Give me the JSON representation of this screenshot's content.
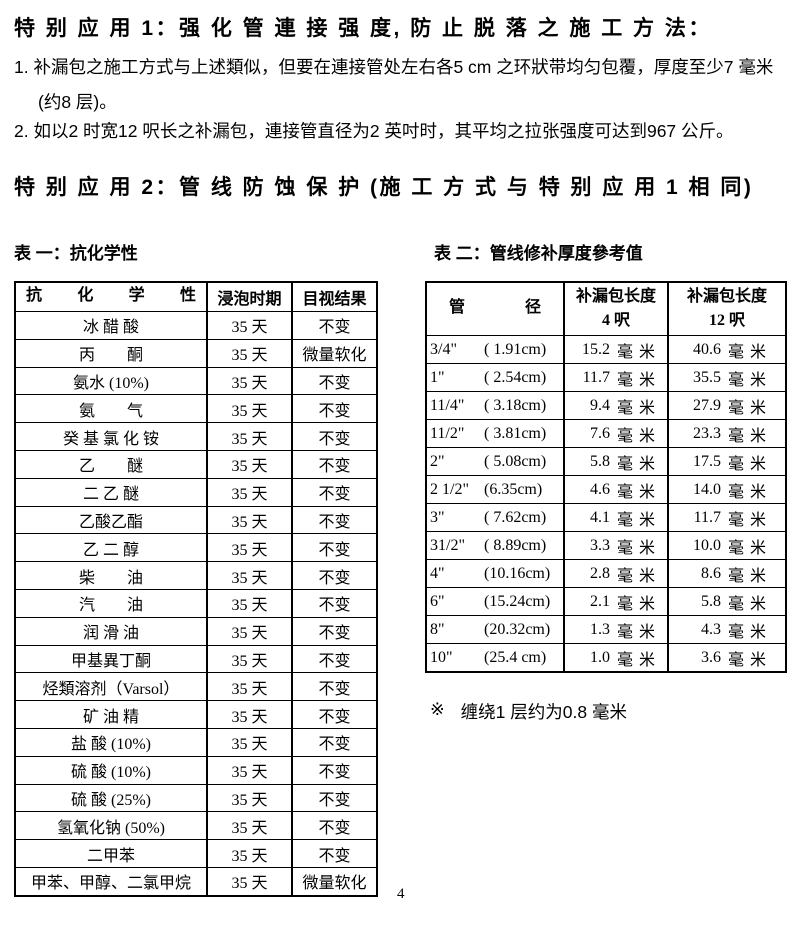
{
  "page_number": "4",
  "sections": {
    "special1": {
      "title": "特 别 应 用 1：强 化 管 連 接 强 度, 防 止 脱 落 之 施 工 方 法：",
      "items": [
        "1. 补漏包之施工方式与上述類似，但要在連接管处左右各5 cm 之环狀带均匀包覆，厚度至少7 毫米 (约8 层)。",
        "2. 如以2 时宽12 呎长之补漏包，連接管直径为2 英吋时，其平均之拉张强度可达到967 公斤。"
      ]
    },
    "special2": {
      "title": "特 别 应 用 2：管 线 防 蚀 保 护 (施 工 方 式 与 特 别 应 用 1 相 同)"
    }
  },
  "table1": {
    "caption": "表 一：抗化学性",
    "headers": [
      "抗 化 学 性",
      "浸泡时期",
      "目视结果"
    ],
    "rows": [
      {
        "name": "冰 醋 酸",
        "period": "35 天",
        "result": "不变"
      },
      {
        "name": "丙　　酮",
        "period": "35 天",
        "result": "微量软化"
      },
      {
        "name": "氨水 (10%)",
        "period": "35 天",
        "result": "不变"
      },
      {
        "name": "氨　　气",
        "period": "35 天",
        "result": "不变"
      },
      {
        "name": "癸 基 氯 化 铵",
        "period": "35 天",
        "result": "不变"
      },
      {
        "name": "乙　　醚",
        "period": "35 天",
        "result": "不变"
      },
      {
        "name": "二 乙 醚",
        "period": "35 天",
        "result": "不变"
      },
      {
        "name": "乙酸乙酯",
        "period": "35 天",
        "result": "不变"
      },
      {
        "name": "乙 二 醇",
        "period": "35 天",
        "result": "不变"
      },
      {
        "name": "柴　　油",
        "period": "35 天",
        "result": "不变"
      },
      {
        "name": "汽　　油",
        "period": "35 天",
        "result": "不变"
      },
      {
        "name": "润 滑 油",
        "period": "35 天",
        "result": "不变"
      },
      {
        "name": "甲基異丁酮",
        "period": "35 天",
        "result": "不变"
      },
      {
        "name": "烃類溶剂（Varsol）",
        "period": "35 天",
        "result": "不变"
      },
      {
        "name": "矿 油 精",
        "period": "35 天",
        "result": "不变"
      },
      {
        "name": "盐 酸 (10%)",
        "period": "35 天",
        "result": "不变"
      },
      {
        "name": "硫 酸 (10%)",
        "period": "35 天",
        "result": "不变"
      },
      {
        "name": "硫 酸 (25%)",
        "period": "35 天",
        "result": "不变"
      },
      {
        "name": "氢氧化钠 (50%)",
        "period": "35 天",
        "result": "不变"
      },
      {
        "name": "二甲苯",
        "period": "35 天",
        "result": "不变"
      },
      {
        "name": "甲苯、甲醇、二氯甲烷",
        "period": "35 天",
        "result": "微量软化"
      }
    ]
  },
  "table2": {
    "caption": "表 二：管线修补厚度參考值",
    "headers": {
      "col1": "管 径",
      "col2_line1": "补漏包长度",
      "col2_line2": "4 呎",
      "col3_line1": "补漏包长度",
      "col3_line2": "12 呎"
    },
    "unit": "毫 米",
    "rows": [
      {
        "size": "3/4\"",
        "cm": "( 1.91cm)",
        "len4": "15.2",
        "len12": "40.6"
      },
      {
        "size": "1\"",
        "cm": "( 2.54cm)",
        "len4": "11.7",
        "len12": "35.5"
      },
      {
        "size": "11/4\"",
        "cm": "( 3.18cm)",
        "len4": "9.4",
        "len12": "27.9"
      },
      {
        "size": "11/2\"",
        "cm": "( 3.81cm)",
        "len4": "7.6",
        "len12": "23.3"
      },
      {
        "size": "2\"",
        "cm": "( 5.08cm)",
        "len4": "5.8",
        "len12": "17.5"
      },
      {
        "size": "2 1/2\"",
        "cm": "(6.35cm)",
        "len4": "4.6",
        "len12": "14.0"
      },
      {
        "size": "3\"",
        "cm": "( 7.62cm)",
        "len4": "4.1",
        "len12": "11.7"
      },
      {
        "size": "31/2\"",
        "cm": "( 8.89cm)",
        "len4": "3.3",
        "len12": "10.0"
      },
      {
        "size": "4\"",
        "cm": "(10.16cm)",
        "len4": "2.8",
        "len12": "8.6"
      },
      {
        "size": "6\"",
        "cm": "(15.24cm)",
        "len4": "2.1",
        "len12": "5.8"
      },
      {
        "size": "8\"",
        "cm": "(20.32cm)",
        "len4": "1.3",
        "len12": "4.3"
      },
      {
        "size": "10\"",
        "cm": "(25.4 cm)",
        "len4": "1.0",
        "len12": "3.6"
      }
    ]
  },
  "note": {
    "mark": "※",
    "text": "缠绕1 层约为0.8 毫米"
  }
}
